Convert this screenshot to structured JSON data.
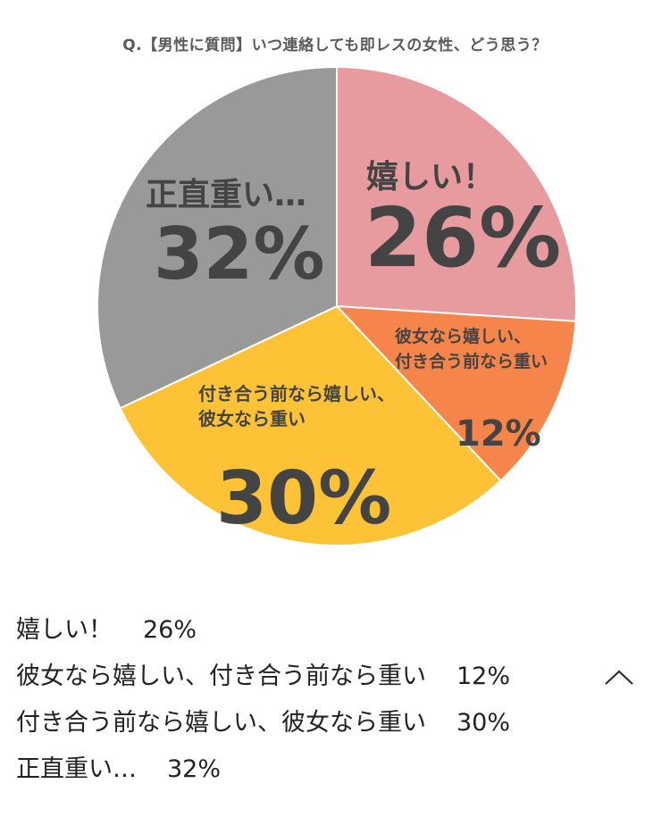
{
  "chart_data": {
    "type": "pie",
    "title": "Q.【男性に質問】いつ連絡しても即レスの女性、どう思う？",
    "slices": [
      {
        "label": "嬉しい！",
        "chart_label_lines": [
          "嬉しい！"
        ],
        "value": 26,
        "value_label": "26%",
        "color": "#e89b9f"
      },
      {
        "label": "彼女なら嬉しい、付き合う前なら重い",
        "chart_label_lines": [
          "彼女なら嬉しい、",
          "付き合う前なら重い"
        ],
        "value": 12,
        "value_label": "12%",
        "color": "#f5854a"
      },
      {
        "label": "付き合う前なら嬉しい、彼女なら重い",
        "chart_label_lines": [
          "付き合う前なら嬉しい、",
          "彼女なら重い"
        ],
        "value": 30,
        "value_label": "30%",
        "color": "#fdc236"
      },
      {
        "label": "正直重い…",
        "chart_label_lines": [
          "正直重い…"
        ],
        "value": 32,
        "value_label": "32%",
        "color": "#999999"
      }
    ]
  },
  "legend": [
    {
      "label": "嬉しい！",
      "value": "26%"
    },
    {
      "label": "彼女なら嬉しい、付き合う前なら重い",
      "value": "12%"
    },
    {
      "label": "付き合う前なら嬉しい、彼女なら重い",
      "value": "30%"
    },
    {
      "label": "正直重い…",
      "value": "32%"
    }
  ],
  "icons": {
    "collapse": "chevron-up-icon"
  }
}
